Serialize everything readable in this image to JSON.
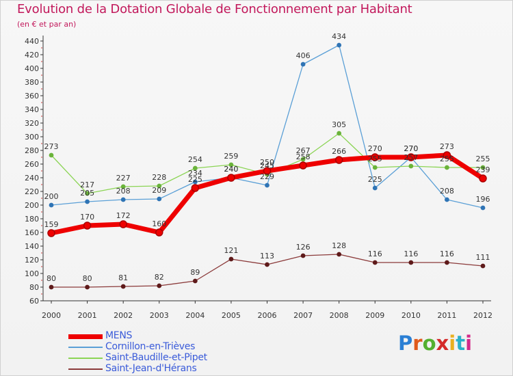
{
  "title": "Evolution de la Dotation Globale de Fonctionnement par Habitant",
  "subtitle": "(en € et par an)",
  "logo": {
    "text": "Proxiti",
    "colors": [
      "#2a7fd4",
      "#e05a1c",
      "#55b030",
      "#d42a2a",
      "#e8b020",
      "#2ab0c8",
      "#d42a8a"
    ]
  },
  "chart_data": {
    "type": "line",
    "title": "Evolution de la Dotation Globale de Fonctionnement par Habitant",
    "subtitle": "(en € et par an)",
    "xlabel": "",
    "ylabel": "",
    "x": [
      "2000",
      "2001",
      "2002",
      "2003",
      "2004",
      "2005",
      "2006",
      "2007",
      "2008",
      "2009",
      "2010",
      "2011",
      "2012"
    ],
    "ylim": [
      60,
      440
    ],
    "yticks": [
      60,
      80,
      100,
      120,
      140,
      160,
      180,
      200,
      220,
      240,
      260,
      280,
      300,
      320,
      340,
      360,
      380,
      400,
      420,
      440
    ],
    "grid": false,
    "legend": "bottom-left",
    "series": [
      {
        "name": "MENS",
        "color": "#ee0000",
        "marker_color": "#aa0000",
        "values": [
          159,
          170,
          172,
          160,
          225,
          240,
          250,
          258,
          266,
          270,
          270,
          273,
          239
        ],
        "labels": [
          "159",
          "170",
          "172",
          "160",
          "225",
          "240",
          "250",
          "258",
          "266",
          "270",
          "270",
          "273",
          "239"
        ]
      },
      {
        "name": "Cornillon-en-Trièves",
        "color": "#5a9fd6",
        "marker_color": "#2f74b5",
        "values": [
          200,
          205,
          208,
          209,
          234,
          240,
          229,
          406,
          434,
          225,
          270,
          208,
          196
        ],
        "labels": [
          "200",
          "205",
          "208",
          "209",
          "234",
          "240",
          "229",
          "406",
          "434",
          "225",
          "270",
          "208",
          "196"
        ]
      },
      {
        "name": "Saint-Baudille-et-Pipet",
        "color": "#8bd454",
        "marker_color": "#6ab33a",
        "values": [
          273,
          217,
          227,
          228,
          254,
          259,
          245,
          267,
          305,
          255,
          257,
          255,
          255
        ],
        "labels": [
          "273",
          "217",
          "227",
          "228",
          "254",
          "259",
          "245",
          "267",
          "305",
          "255",
          "257",
          "255",
          "255"
        ]
      },
      {
        "name": "Saint-Jean-d'Hérans",
        "color": "#8b3a3a",
        "marker_color": "#5e1a1a",
        "values": [
          80,
          80,
          81,
          82,
          89,
          121,
          113,
          126,
          128,
          116,
          116,
          116,
          111
        ],
        "labels": [
          "80",
          "80",
          "81",
          "82",
          "89",
          "121",
          "113",
          "126",
          "128",
          "116",
          "116",
          "116",
          "111"
        ]
      }
    ]
  }
}
